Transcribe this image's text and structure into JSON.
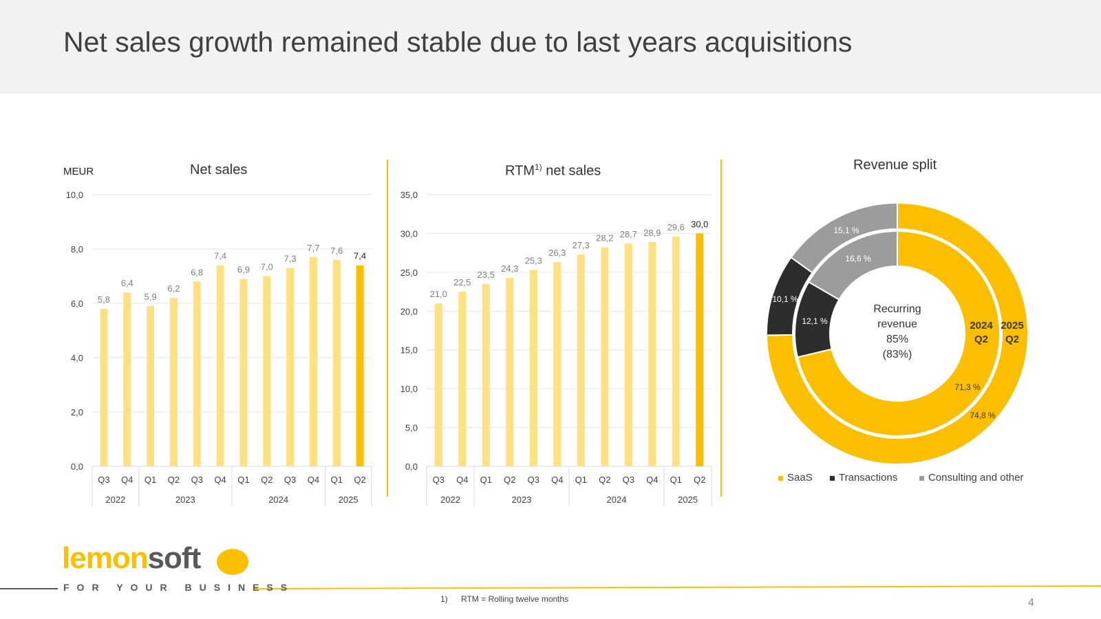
{
  "page": {
    "title": "Net sales growth remained stable due to last years acquisitions",
    "unit": "MEUR",
    "footnote_number": "1)",
    "footnote_text": "RTM = Rolling twelve months",
    "page_number": "4",
    "logo_part1": "lemon",
    "logo_part2": "soft",
    "tagline": "FOR YOUR BUSINESS"
  },
  "colors": {
    "light": "#ffe082",
    "accent": "#fbbf00",
    "dark": "#2d2d2d",
    "grey": "#9c9c9c"
  },
  "chart_data": [
    {
      "type": "bar",
      "title": "Net sales",
      "ylabel": "MEUR",
      "ylim": [
        0,
        10
      ],
      "yticks": [
        "0,0",
        "2,0",
        "4,0",
        "6,0",
        "8,0",
        "10,0"
      ],
      "categories": [
        "Q3",
        "Q4",
        "Q1",
        "Q2",
        "Q3",
        "Q4",
        "Q1",
        "Q2",
        "Q3",
        "Q4",
        "Q1",
        "Q2"
      ],
      "values": [
        5.8,
        6.4,
        5.9,
        6.2,
        6.8,
        7.4,
        6.9,
        7.0,
        7.3,
        7.7,
        7.6,
        7.4
      ],
      "labels": [
        "5,8",
        "6,4",
        "5,9",
        "6,2",
        "6,8",
        "7,4",
        "6,9",
        "7,0",
        "7,3",
        "7,7",
        "7,6",
        "7,4"
      ],
      "year_groups": [
        {
          "year": "2022",
          "count": 2
        },
        {
          "year": "2023",
          "count": 4
        },
        {
          "year": "2024",
          "count": 4
        },
        {
          "year": "2025",
          "count": 2
        }
      ]
    },
    {
      "type": "bar",
      "title": "RTM",
      "title_sup": "1)",
      "title_suffix": " net sales",
      "ylim": [
        0,
        35
      ],
      "yticks": [
        "0,0",
        "5,0",
        "10,0",
        "15,0",
        "20,0",
        "25,0",
        "30,0",
        "35,0"
      ],
      "categories": [
        "Q3",
        "Q4",
        "Q1",
        "Q2",
        "Q3",
        "Q4",
        "Q1",
        "Q2",
        "Q3",
        "Q4",
        "Q1",
        "Q2"
      ],
      "values": [
        21.0,
        22.5,
        23.5,
        24.3,
        25.3,
        26.3,
        27.3,
        28.2,
        28.7,
        28.9,
        29.6,
        30.0
      ],
      "labels": [
        "21,0",
        "22,5",
        "23,5",
        "24,3",
        "25,3",
        "26,3",
        "27,3",
        "28,2",
        "28,7",
        "28,9",
        "29,6",
        "30,0"
      ],
      "year_groups": [
        {
          "year": "2022",
          "count": 2
        },
        {
          "year": "2023",
          "count": 4
        },
        {
          "year": "2024",
          "count": 4
        },
        {
          "year": "2025",
          "count": 2
        }
      ]
    },
    {
      "type": "pie",
      "title": "Revenue split",
      "center_lines": [
        "Recurring",
        "revenue",
        "85%",
        "(83%)"
      ],
      "rings": [
        {
          "name": "2025 Q2",
          "line1": "2025",
          "line2": "Q2",
          "values": [
            74.8,
            10.1,
            15.1
          ],
          "labels": [
            "74,8 %",
            "10,1 %",
            "15,1 %"
          ]
        },
        {
          "name": "2024 Q2",
          "line1": "2024",
          "line2": "Q2",
          "values": [
            71.3,
            12.1,
            16.6
          ],
          "labels": [
            "71,3 %",
            "12,1 %",
            "16,6 %"
          ]
        }
      ],
      "legend": [
        "SaaS",
        "Transactions",
        "Consulting and other"
      ]
    }
  ]
}
